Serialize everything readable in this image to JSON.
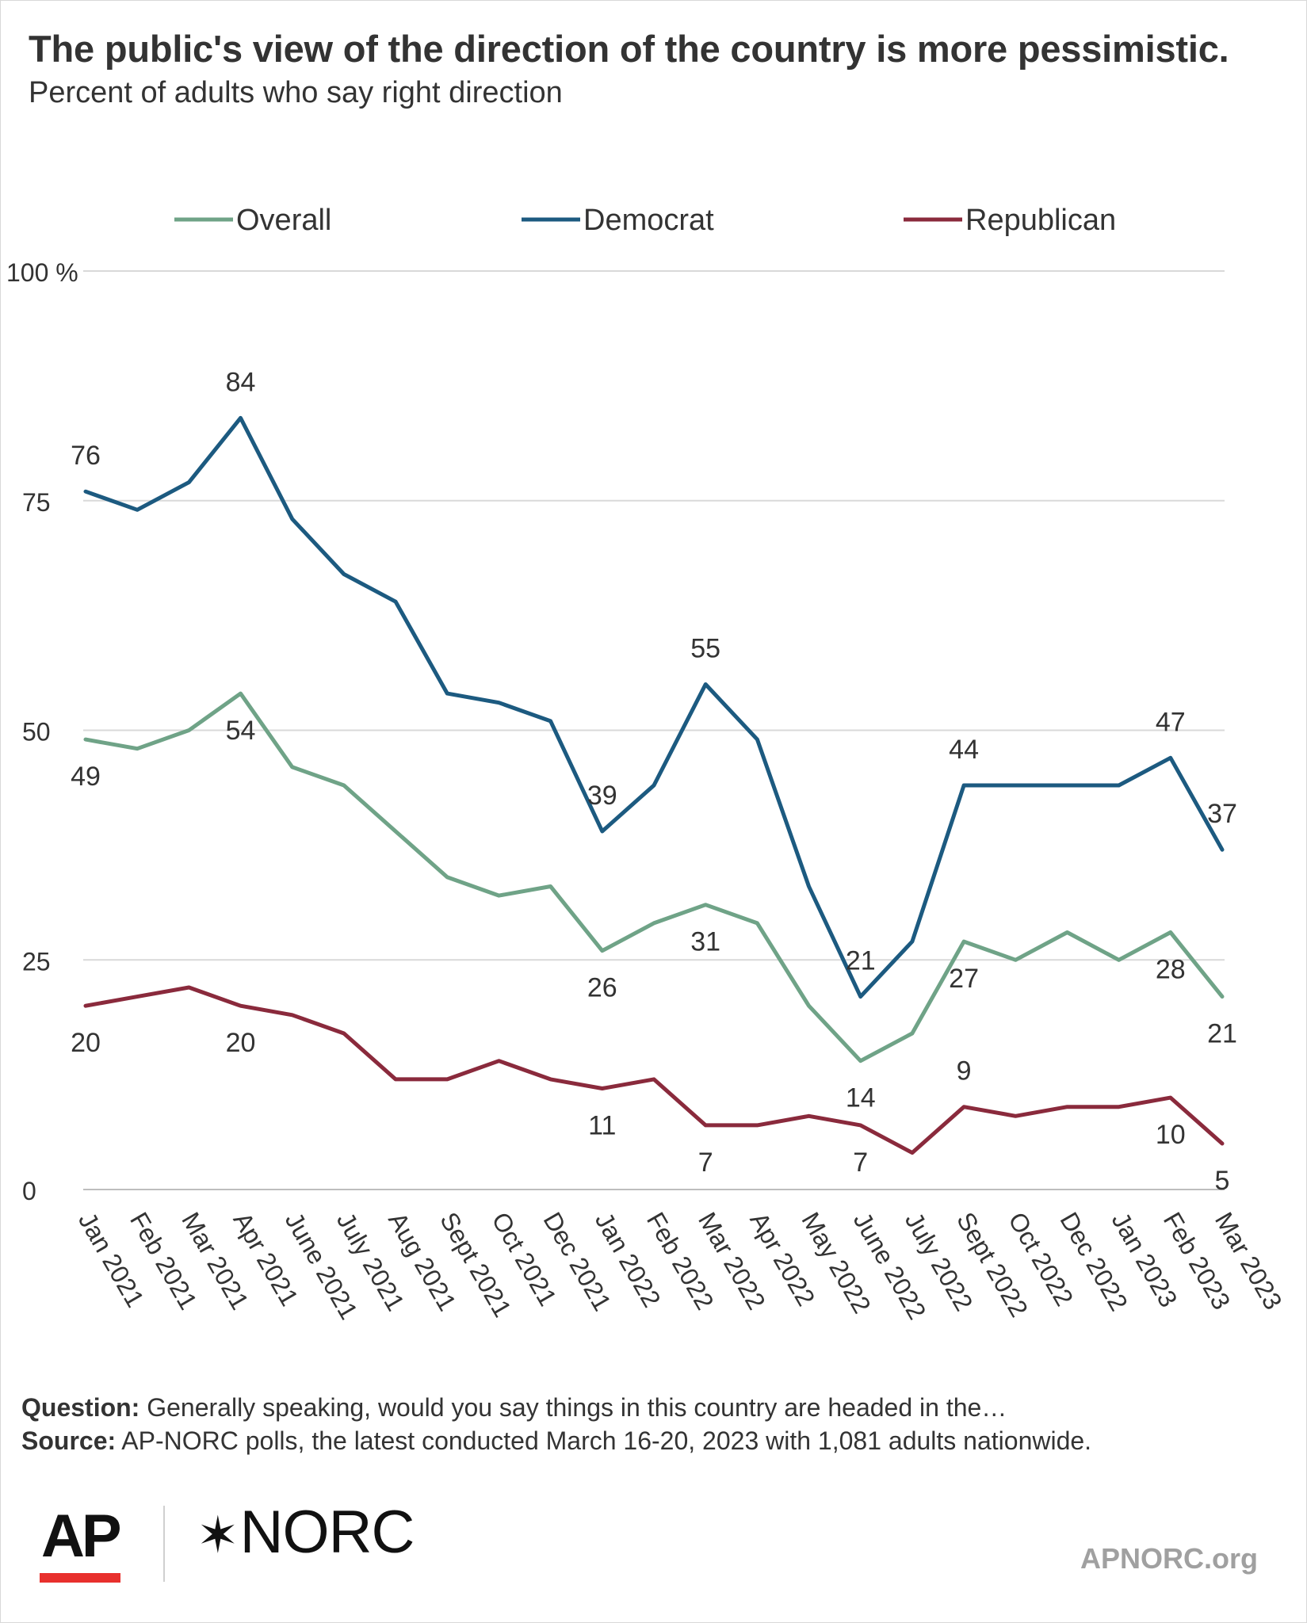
{
  "title": "The public's view of the direction of the country is more pessimistic.",
  "subtitle": "Percent of adults who say right direction",
  "note": {
    "question_label": "Question:",
    "question_text": "Generally speaking, would you say things in this country are headed in the…",
    "source_label": "Source:",
    "source_text": "AP-NORC polls, the latest conducted March 16-20, 2023 with 1,081 adults nationwide."
  },
  "branding": {
    "ap_logo": "AP",
    "norc_star": "✶",
    "norc_logo": "NORC",
    "site": "APNORC.org",
    "ap_bar_color": "#e8302d"
  },
  "chart_data": {
    "type": "line",
    "categories": [
      "Jan 2021",
      "Feb 2021",
      "Mar 2021",
      "Apr 2021",
      "June 2021",
      "July 2021",
      "Aug 2021",
      "Sept 2021",
      "Oct 2021",
      "Dec 2021",
      "Jan 2022",
      "Feb 2022",
      "Mar 2022",
      "Apr 2022",
      "May 2022",
      "June 2022",
      "July 2022",
      "Sept 2022",
      "Oct 2022",
      "Dec 2022",
      "Jan 2023",
      "Feb 2023",
      "Mar 2023"
    ],
    "ylim": [
      0,
      100
    ],
    "yticks": [
      0,
      25,
      50,
      75,
      100
    ],
    "ytick_labels": [
      "0",
      "25",
      "50",
      "75",
      "100 %"
    ],
    "grid": true,
    "legend_position": "top",
    "series": [
      {
        "name": "Overall",
        "color": "#6fa387",
        "values": [
          49,
          48,
          50,
          54,
          46,
          44,
          39,
          34,
          32,
          33,
          26,
          29,
          31,
          29,
          20,
          14,
          17,
          27,
          25,
          28,
          25,
          28,
          21
        ],
        "labels": [
          {
            "index": 0,
            "text": "49",
            "pos": "below"
          },
          {
            "index": 3,
            "text": "54",
            "pos": "below"
          },
          {
            "index": 10,
            "text": "26",
            "pos": "below"
          },
          {
            "index": 12,
            "text": "31",
            "pos": "below"
          },
          {
            "index": 15,
            "text": "14",
            "pos": "below"
          },
          {
            "index": 17,
            "text": "27",
            "pos": "below"
          },
          {
            "index": 21,
            "text": "28",
            "pos": "below"
          },
          {
            "index": 22,
            "text": "21",
            "pos": "below"
          }
        ]
      },
      {
        "name": "Democrat",
        "color": "#1c5a80",
        "values": [
          76,
          74,
          77,
          84,
          73,
          67,
          64,
          54,
          53,
          51,
          39,
          44,
          55,
          49,
          33,
          21,
          27,
          44,
          44,
          44,
          44,
          47,
          37
        ],
        "labels": [
          {
            "index": 0,
            "text": "76",
            "pos": "above"
          },
          {
            "index": 3,
            "text": "84",
            "pos": "above"
          },
          {
            "index": 10,
            "text": "39",
            "pos": "above"
          },
          {
            "index": 12,
            "text": "55",
            "pos": "above"
          },
          {
            "index": 15,
            "text": "21",
            "pos": "above"
          },
          {
            "index": 17,
            "text": "44",
            "pos": "above"
          },
          {
            "index": 21,
            "text": "47",
            "pos": "above"
          },
          {
            "index": 22,
            "text": "37",
            "pos": "above"
          }
        ]
      },
      {
        "name": "Republican",
        "color": "#8a2a3c",
        "values": [
          20,
          21,
          22,
          20,
          19,
          17,
          12,
          12,
          14,
          12,
          11,
          12,
          7,
          7,
          8,
          7,
          4,
          9,
          8,
          9,
          9,
          10,
          5
        ],
        "labels": [
          {
            "index": 0,
            "text": "20",
            "pos": "below"
          },
          {
            "index": 3,
            "text": "20",
            "pos": "below"
          },
          {
            "index": 10,
            "text": "11",
            "pos": "below"
          },
          {
            "index": 12,
            "text": "7",
            "pos": "below"
          },
          {
            "index": 15,
            "text": "7",
            "pos": "below"
          },
          {
            "index": 17,
            "text": "9",
            "pos": "above"
          },
          {
            "index": 21,
            "text": "10",
            "pos": "below"
          },
          {
            "index": 22,
            "text": "5",
            "pos": "below"
          }
        ]
      }
    ]
  }
}
